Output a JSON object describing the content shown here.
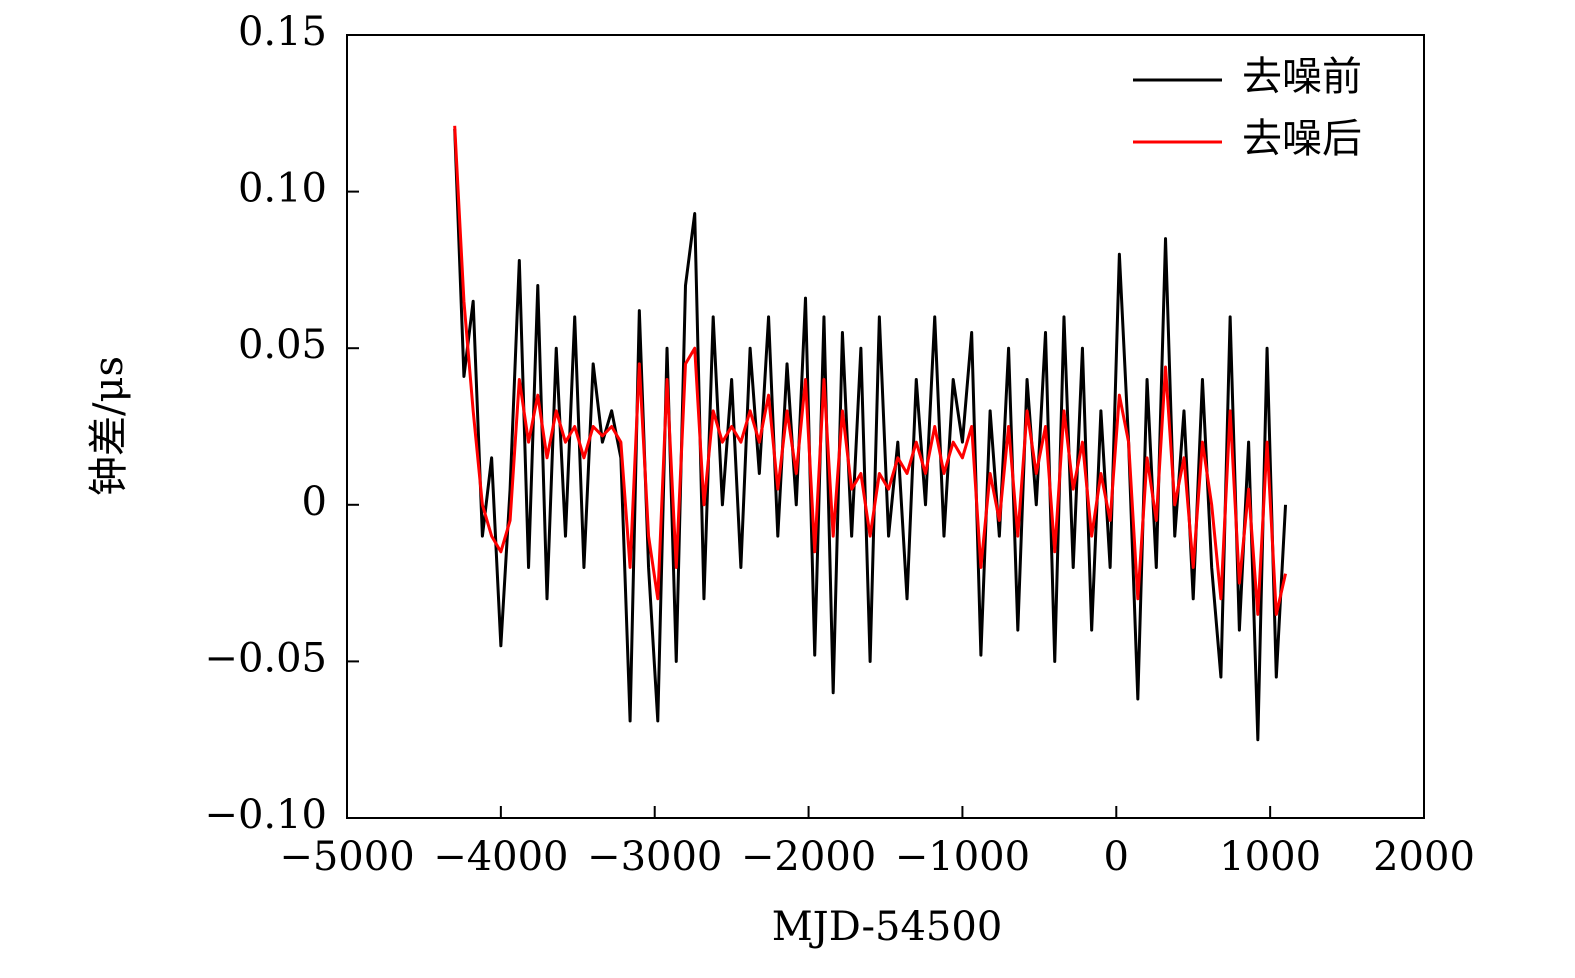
{
  "chart_data": {
    "type": "line",
    "xlabel": "MJD-54500",
    "ylabel": "钟差/μs",
    "x": [
      -4300,
      -4240,
      -4180,
      -4120,
      -4060,
      -4000,
      -3940,
      -3880,
      -3820,
      -3760,
      -3700,
      -3640,
      -3580,
      -3520,
      -3460,
      -3400,
      -3340,
      -3280,
      -3220,
      -3160,
      -3100,
      -3040,
      -2980,
      -2920,
      -2860,
      -2800,
      -2740,
      -2680,
      -2620,
      -2560,
      -2500,
      -2440,
      -2380,
      -2320,
      -2260,
      -2200,
      -2140,
      -2080,
      -2020,
      -1960,
      -1900,
      -1840,
      -1780,
      -1720,
      -1660,
      -1600,
      -1540,
      -1480,
      -1420,
      -1360,
      -1300,
      -1240,
      -1180,
      -1120,
      -1060,
      -1000,
      -940,
      -880,
      -820,
      -760,
      -700,
      -640,
      -580,
      -520,
      -460,
      -400,
      -340,
      -280,
      -220,
      -160,
      -100,
      -40,
      20,
      80,
      140,
      200,
      260,
      320,
      380,
      440,
      500,
      560,
      620,
      680,
      740,
      800,
      860,
      920,
      980,
      1040,
      1100
    ],
    "series": [
      {
        "name": "去噪前",
        "color": "#000000",
        "values": [
          0.12,
          0.041,
          0.065,
          -0.01,
          0.015,
          -0.045,
          0.005,
          0.078,
          -0.02,
          0.07,
          -0.03,
          0.05,
          -0.01,
          0.06,
          -0.02,
          0.045,
          0.02,
          0.03,
          0.015,
          -0.069,
          0.062,
          -0.02,
          -0.069,
          0.05,
          -0.05,
          0.07,
          0.093,
          -0.03,
          0.06,
          0.0,
          0.04,
          -0.02,
          0.05,
          0.01,
          0.06,
          -0.01,
          0.045,
          0.0,
          0.066,
          -0.048,
          0.06,
          -0.06,
          0.055,
          -0.01,
          0.05,
          -0.05,
          0.06,
          -0.01,
          0.02,
          -0.03,
          0.04,
          0.0,
          0.06,
          -0.01,
          0.04,
          0.02,
          0.055,
          -0.048,
          0.03,
          -0.01,
          0.05,
          -0.04,
          0.04,
          0.0,
          0.055,
          -0.05,
          0.06,
          -0.02,
          0.05,
          -0.04,
          0.03,
          -0.02,
          0.08,
          0.02,
          -0.062,
          0.04,
          -0.02,
          0.085,
          -0.01,
          0.03,
          -0.03,
          0.04,
          -0.02,
          -0.055,
          0.06,
          -0.04,
          0.02,
          -0.075,
          0.05,
          -0.055,
          0.0
        ]
      },
      {
        "name": "去噪后",
        "color": "#ff0000",
        "values": [
          0.121,
          0.065,
          0.03,
          0.0,
          -0.01,
          -0.015,
          -0.005,
          0.04,
          0.02,
          0.035,
          0.015,
          0.03,
          0.02,
          0.025,
          0.015,
          0.025,
          0.022,
          0.025,
          0.02,
          -0.02,
          0.045,
          -0.01,
          -0.03,
          0.04,
          -0.02,
          0.045,
          0.05,
          0.0,
          0.03,
          0.02,
          0.025,
          0.02,
          0.03,
          0.02,
          0.035,
          0.005,
          0.03,
          0.01,
          0.04,
          -0.015,
          0.04,
          -0.01,
          0.03,
          0.005,
          0.01,
          -0.01,
          0.01,
          0.005,
          0.015,
          0.01,
          0.02,
          0.01,
          0.025,
          0.01,
          0.02,
          0.015,
          0.025,
          -0.02,
          0.01,
          -0.005,
          0.025,
          -0.01,
          0.03,
          0.01,
          0.025,
          -0.015,
          0.03,
          0.005,
          0.02,
          -0.01,
          0.01,
          -0.005,
          0.035,
          0.02,
          -0.03,
          0.015,
          -0.005,
          0.044,
          0.0,
          0.015,
          -0.02,
          0.02,
          0.0,
          -0.03,
          0.03,
          -0.025,
          0.005,
          -0.035,
          0.02,
          -0.035,
          -0.022
        ]
      }
    ],
    "xlim": [
      -5000,
      2000
    ],
    "xticks": [
      {
        "value": -5000,
        "label": "−5000"
      },
      {
        "value": -4000,
        "label": "−4000"
      },
      {
        "value": -3000,
        "label": "−3000"
      },
      {
        "value": -2000,
        "label": "−2000"
      },
      {
        "value": -1000,
        "label": "−1000"
      },
      0,
      1000,
      2000
    ],
    "ylim": [
      -0.1,
      0.15
    ],
    "yticks": [
      {
        "value": -0.1,
        "label": "−0.10"
      },
      {
        "value": -0.05,
        "label": "−0.05"
      },
      0,
      0.05,
      {
        "value": 0.1,
        "label": "0.10"
      },
      0.15
    ],
    "legend": "upper right",
    "grid": false
  }
}
